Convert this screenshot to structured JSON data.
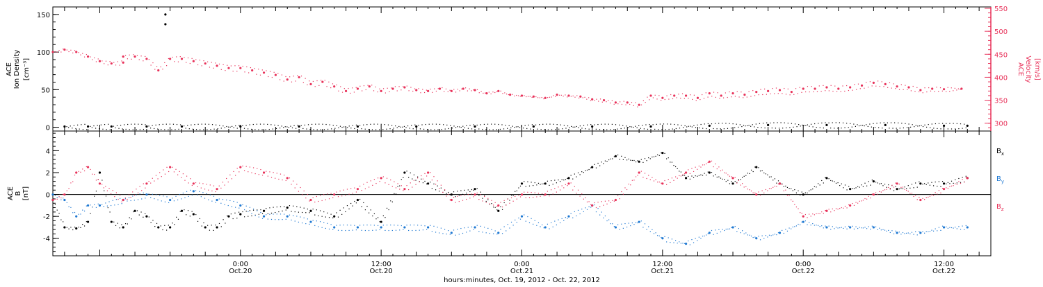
{
  "colors": {
    "axis": "#000000",
    "velocity": "#e8325a",
    "bx": "#000000",
    "by": "#1e78d2",
    "bz": "#e8325a"
  },
  "xaxis": {
    "title": "hours:minutes, Oct. 19, 2012 - Oct. 22, 2012",
    "start_hour": -16,
    "end_hour": 64,
    "major_ticks": [
      {
        "hour": 0,
        "time": "0:00",
        "date": "Oct.20"
      },
      {
        "hour": 12,
        "time": "12:00",
        "date": "Oct.20"
      },
      {
        "hour": 24,
        "time": "0:00",
        "date": "Oct.21"
      },
      {
        "hour": 36,
        "time": "12:00",
        "date": "Oct.21"
      },
      {
        "hour": 48,
        "time": "0:00",
        "date": "Oct.22"
      },
      {
        "hour": 60,
        "time": "12:00",
        "date": "Oct.22"
      }
    ]
  },
  "chart_data": [
    {
      "type": "scatter",
      "panel": "top",
      "left_axis": {
        "label_lines": [
          "ACE",
          "Ion Density"
        ],
        "unit": "[cm⁻³]",
        "range": [
          -5,
          160
        ],
        "ticks": [
          0,
          50,
          100,
          150
        ]
      },
      "right_axis": {
        "label_lines": [
          "ACE",
          "Velocity"
        ],
        "unit": "[km/s]",
        "range": [
          283,
          553
        ],
        "ticks": [
          300,
          350,
          400,
          450,
          500,
          550
        ]
      },
      "series": [
        {
          "axis": "right",
          "color": "#e8325a",
          "x": [
            -16,
            -15,
            -14,
            -13,
            -12,
            -11,
            -10,
            -10,
            -9,
            -8,
            -7,
            -6,
            -5,
            -4,
            -3,
            -2,
            -1,
            0,
            1,
            2,
            3,
            4,
            5,
            6,
            7,
            8,
            9,
            10,
            11,
            12,
            13,
            14,
            15,
            16,
            17,
            18,
            19,
            20,
            21,
            22,
            23,
            24,
            25,
            26,
            27,
            28,
            29,
            30,
            31,
            32,
            33,
            34,
            35,
            36,
            37,
            38,
            39,
            40,
            41,
            42,
            43,
            44,
            45,
            46,
            47,
            48,
            49,
            50,
            51,
            52,
            53,
            54,
            55,
            56,
            57,
            58,
            59,
            60,
            61.5
          ],
          "y": [
            455,
            460,
            455,
            445,
            435,
            430,
            432,
            445,
            445,
            440,
            415,
            440,
            440,
            435,
            430,
            425,
            420,
            420,
            415,
            410,
            405,
            395,
            400,
            385,
            390,
            380,
            370,
            375,
            380,
            370,
            375,
            378,
            372,
            370,
            375,
            370,
            375,
            372,
            365,
            370,
            362,
            360,
            358,
            355,
            362,
            360,
            358,
            352,
            350,
            345,
            345,
            340,
            360,
            355,
            360,
            360,
            355,
            365,
            360,
            365,
            362,
            368,
            370,
            372,
            368,
            375,
            375,
            378,
            375,
            378,
            382,
            388,
            385,
            380,
            378,
            372,
            375,
            374,
            375
          ]
        },
        {
          "axis": "left",
          "color": "#000000",
          "x": [
            -15,
            -13,
            -11,
            -8,
            -5,
            0,
            5,
            10,
            15,
            20,
            25,
            30,
            35,
            40,
            45,
            50,
            55,
            60,
            62
          ],
          "y": [
            1,
            1,
            1,
            1,
            1,
            1,
            1,
            1,
            1,
            1,
            1,
            1,
            1,
            2,
            3,
            3,
            3,
            2,
            2
          ]
        },
        {
          "axis": "left",
          "color": "#000000",
          "x": [
            -6.4,
            -6.4
          ],
          "y": [
            150,
            137
          ]
        }
      ]
    },
    {
      "type": "scatter",
      "panel": "bottom",
      "left_axis": {
        "label_lines": [
          "ACE",
          "B"
        ],
        "unit": "[nT]",
        "range": [
          -5.6,
          5.8
        ],
        "ticks": [
          -4,
          -2,
          0,
          2,
          4
        ]
      },
      "zero_line": true,
      "series": [
        {
          "name": "Bx",
          "color": "#000000",
          "x": [
            -16,
            -15,
            -14,
            -13,
            -12,
            -11,
            -10,
            -9,
            -8,
            -7,
            -6,
            -5,
            -4,
            -3,
            -2,
            -1,
            0,
            2,
            4,
            6,
            8,
            10,
            12,
            14,
            16,
            18,
            20,
            22,
            24,
            26,
            28,
            30,
            32,
            34,
            36,
            38,
            40,
            42,
            44,
            46,
            48,
            50,
            52,
            54,
            56,
            58,
            60,
            62
          ],
          "y": [
            -0.5,
            -3,
            -3.1,
            -2.5,
            2,
            -2.5,
            -3,
            -1.5,
            -2,
            -3,
            -3,
            -1.5,
            -1.8,
            -3,
            -3,
            -2,
            -1.8,
            -1.5,
            -1.2,
            -1.5,
            -2,
            -0.5,
            -2.5,
            2,
            1,
            0,
            0.5,
            -1.5,
            1,
            1,
            1.5,
            2.5,
            3.5,
            3,
            3.8,
            1.5,
            2,
            1,
            2.5,
            1,
            0,
            1.5,
            0.5,
            1.2,
            0.5,
            1,
            1,
            1.5
          ]
        },
        {
          "name": "By",
          "color": "#1e78d2",
          "x": [
            -16,
            -15,
            -14,
            -13,
            -12,
            -10,
            -8,
            -6,
            -4,
            -2,
            0,
            2,
            4,
            6,
            8,
            10,
            12,
            14,
            16,
            18,
            20,
            22,
            24,
            26,
            28,
            30,
            32,
            34,
            36,
            38,
            40,
            42,
            44,
            46,
            48,
            50,
            52,
            54,
            56,
            58,
            60,
            62
          ],
          "y": [
            0,
            -0.5,
            -2,
            -1,
            -1,
            -0.5,
            0,
            -0.5,
            0.3,
            -0.5,
            -1,
            -2,
            -2,
            -2.5,
            -3,
            -3,
            -3,
            -3,
            -3,
            -3.5,
            -3,
            -3.5,
            -2,
            -3,
            -2,
            -1,
            -3,
            -2.5,
            -4,
            -4.5,
            -3.5,
            -3,
            -4,
            -3.5,
            -2.5,
            -3,
            -3,
            -3,
            -3.5,
            -3.5,
            -3,
            -3
          ]
        },
        {
          "name": "Bz",
          "color": "#e8325a",
          "x": [
            -16,
            -15,
            -14,
            -13,
            -12,
            -10,
            -8,
            -6,
            -4,
            -2,
            0,
            2,
            4,
            6,
            8,
            10,
            12,
            14,
            16,
            18,
            20,
            22,
            24,
            26,
            28,
            30,
            32,
            34,
            36,
            38,
            40,
            42,
            44,
            46,
            48,
            50,
            52,
            54,
            56,
            58,
            60,
            62
          ],
          "y": [
            -0.5,
            0,
            2,
            2.5,
            1,
            -0.5,
            1,
            2.5,
            1,
            0.5,
            2.5,
            2,
            1.5,
            -0.5,
            0,
            0.5,
            1.5,
            0.5,
            2,
            -0.5,
            0,
            -1,
            0,
            0,
            1,
            -1,
            -0.5,
            2,
            1,
            2,
            3,
            1.5,
            0,
            1,
            -2,
            -1.5,
            -1,
            0,
            1,
            -0.5,
            0.5,
            1.5
          ]
        }
      ]
    }
  ]
}
